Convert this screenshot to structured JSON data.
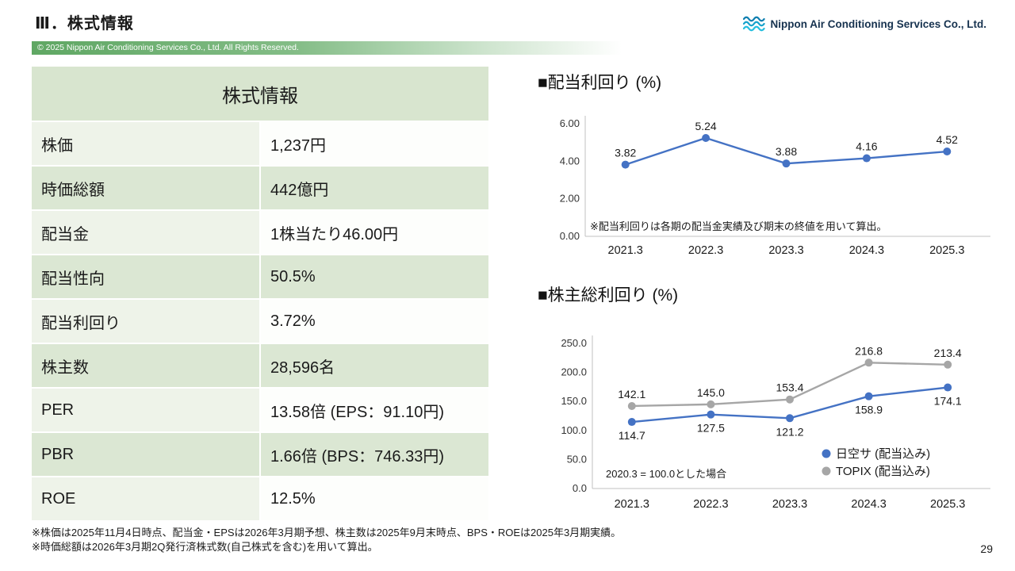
{
  "page": {
    "title": "Ⅲ．株式情報",
    "logo_text": "Nippon Air Conditioning Services Co., Ltd.",
    "copyright": "© 2025 Nippon Air Conditioning Services Co., Ltd. All Rights Reserved.",
    "footnotes": [
      "※株価は2025年11月4日時点、配当金・EPSは2026年3月期予想、株主数は2025年9月末時点、BPS・ROEは2025年3月期実績。",
      "※時価総額は2026年3月期2Q発行済株式数(自己株式を含む)を用いて算出。"
    ],
    "page_number": "29"
  },
  "colors": {
    "accent_green": "#5fa763",
    "table_header_green": "#d8e5cf",
    "table_band_green": "#dbe7d3",
    "table_label_light": "#eef3e9",
    "series_blue": "#4472c4",
    "series_gray": "#a6a6a6",
    "logo_navy": "#16324f",
    "logo_teal": "#1b9dc4"
  },
  "table": {
    "title": "株式情報",
    "rows": [
      {
        "label": "株価",
        "value": "1,237円"
      },
      {
        "label": "時価総額",
        "value": "442億円"
      },
      {
        "label": "配当金",
        "value": "1株当たり46.00円"
      },
      {
        "label": "配当性向",
        "value": "50.5%"
      },
      {
        "label": "配当利回り",
        "value": "3.72%"
      },
      {
        "label": "株主数",
        "value": "28,596名"
      },
      {
        "label": "PER",
        "value": "13.58倍 (EPS：91.10円)"
      },
      {
        "label": "PBR",
        "value": "1.66倍 (BPS：746.33円)"
      },
      {
        "label": "ROE",
        "value": "12.5%"
      }
    ]
  },
  "chart_data": [
    {
      "type": "line",
      "title": "■配当利回り (%)",
      "categories": [
        "2021.3",
        "2022.3",
        "2023.3",
        "2024.3",
        "2025.3"
      ],
      "series": [
        {
          "name": "配当利回り",
          "color": "#4472c4",
          "values": [
            3.82,
            5.24,
            3.88,
            4.16,
            4.52
          ],
          "label_position": "above"
        }
      ],
      "ylim": [
        0,
        6
      ],
      "yticks": [
        "6.00",
        "4.00",
        "2.00",
        "0.00"
      ],
      "label_decimals": 2,
      "grid": false,
      "note": "※配当利回りは各期の配当金実績及び期末の終値を用いて算出。"
    },
    {
      "type": "line",
      "title": "■株主総利回り (%)",
      "categories": [
        "2021.3",
        "2022.3",
        "2023.3",
        "2024.3",
        "2025.3"
      ],
      "series": [
        {
          "name": "日空サ (配当込み)",
          "color": "#4472c4",
          "values": [
            114.7,
            127.5,
            121.2,
            158.9,
            174.1
          ],
          "label_position": "below"
        },
        {
          "name": "TOPIX (配当込み)",
          "color": "#a6a6a6",
          "values": [
            142.1,
            145.0,
            153.4,
            216.8,
            213.4
          ],
          "label_position": "above"
        }
      ],
      "ylim": [
        0,
        250
      ],
      "yticks": [
        "250.0",
        "200.0",
        "150.0",
        "100.0",
        "50.0",
        "0.0"
      ],
      "label_decimals": 1,
      "grid": false,
      "note": "2020.3 = 100.0とした場合",
      "legend_position": "bottom-right"
    }
  ]
}
